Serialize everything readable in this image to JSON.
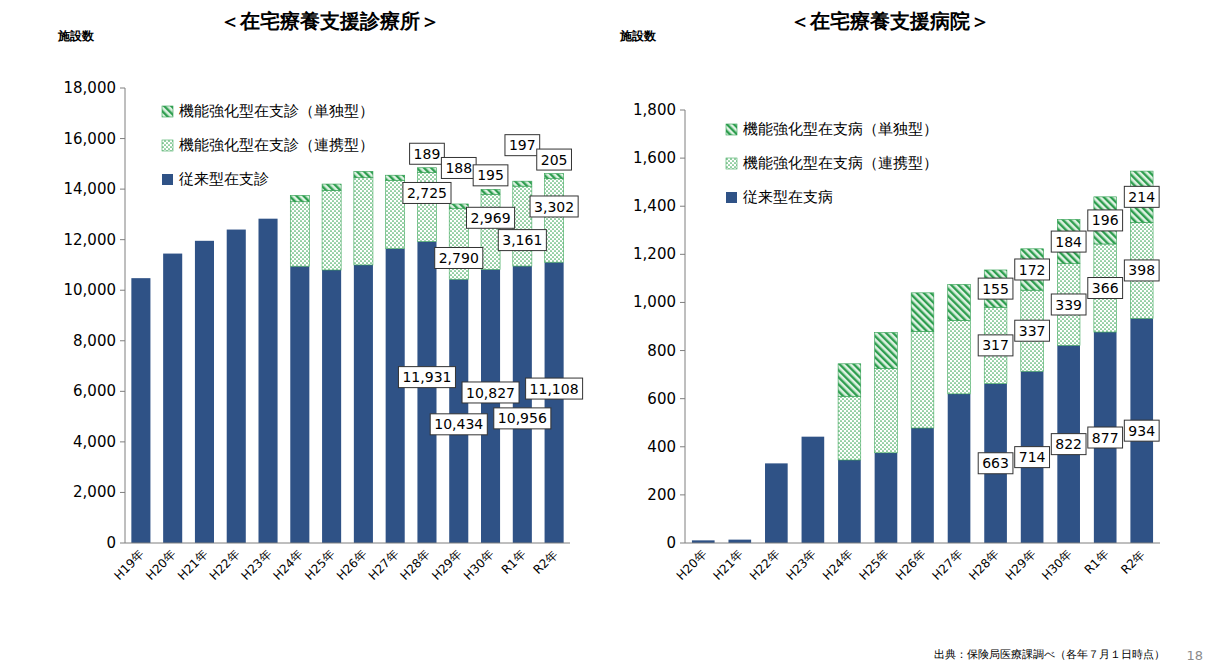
{
  "chart_data": [
    {
      "type": "bar",
      "stacked": true,
      "data_labels": true,
      "grid": false,
      "legend": "upper-left",
      "title": "＜在宅療養支援診療所＞",
      "ylabel": "施設数",
      "categories": [
        "H19年",
        "H20年",
        "H21年",
        "H22年",
        "H23年",
        "H24年",
        "H25年",
        "H26年",
        "H27年",
        "H28年",
        "H29年",
        "H30年",
        "R1年",
        "R2年"
      ],
      "ylim": [
        0,
        18000
      ],
      "yticks": [
        0,
        {
          "value": 2000,
          "label": "2,000"
        },
        {
          "value": 4000,
          "label": "4,000"
        },
        {
          "value": 6000,
          "label": "6,000"
        },
        {
          "value": 8000,
          "label": "8,000"
        },
        {
          "value": 10000,
          "label": "10,000"
        },
        {
          "value": 12000,
          "label": "12,000"
        },
        {
          "value": 14000,
          "label": "14,000"
        },
        {
          "value": 16000,
          "label": "16,000"
        },
        {
          "value": 18000,
          "label": "18,000"
        }
      ],
      "series": [
        {
          "name": "従来型在支診",
          "color": "#2f5286",
          "values": [
            10477,
            11450,
            11955,
            12400,
            12830,
            10950,
            10800,
            11000,
            11650,
            11931,
            10434,
            10827,
            10956,
            11108
          ],
          "value_labels": [
            null,
            null,
            null,
            null,
            null,
            null,
            null,
            null,
            null,
            "11,931",
            "10,434",
            "10,827",
            "10,956",
            "11,108"
          ]
        },
        {
          "name": "機能強化型在支診（連携型）",
          "color": "#3da85a",
          "values": [
            null,
            null,
            null,
            null,
            null,
            2550,
            3150,
            3450,
            2700,
            2725,
            2790,
            2969,
            3161,
            3302
          ],
          "value_labels": [
            null,
            null,
            null,
            null,
            null,
            null,
            null,
            null,
            null,
            "2,725",
            "2,790",
            "2,969",
            "3,161",
            "3,302"
          ]
        },
        {
          "name": "機能強化型在支診（単独型）",
          "color": "#2e9e4f",
          "values": [
            null,
            null,
            null,
            null,
            null,
            250,
            250,
            250,
            200,
            189,
            188,
            195,
            197,
            205
          ],
          "value_labels": [
            null,
            null,
            null,
            null,
            null,
            null,
            null,
            null,
            null,
            "189",
            "188",
            "195",
            "197",
            "205"
          ]
        }
      ]
    },
    {
      "type": "bar",
      "stacked": true,
      "data_labels": true,
      "grid": false,
      "legend": "upper-left",
      "title": "＜在宅療養支援病院＞",
      "ylabel": "施設数",
      "categories": [
        "H20年",
        "H21年",
        "H22年",
        "H23年",
        "H24年",
        "H25年",
        "H26年",
        "H27年",
        "H28年",
        "H29年",
        "H30年",
        "R1年",
        "R2年"
      ],
      "ylim": [
        0,
        1800
      ],
      "yticks": [
        0,
        200,
        400,
        600,
        800,
        {
          "value": 1000,
          "label": "1,000"
        },
        {
          "value": 1200,
          "label": "1,200"
        },
        {
          "value": 1400,
          "label": "1,400"
        },
        {
          "value": 1600,
          "label": "1,600"
        },
        {
          "value": 1800,
          "label": "1,800"
        }
      ],
      "series": [
        {
          "name": "従来型在支病",
          "color": "#2f5286",
          "values": [
            11,
            14,
            331,
            442,
            345,
            375,
            478,
            620,
            663,
            714,
            822,
            877,
            934
          ],
          "value_labels": [
            null,
            null,
            null,
            null,
            null,
            null,
            null,
            null,
            "663",
            "714",
            "822",
            "877",
            "934"
          ]
        },
        {
          "name": "機能強化型在支病（連携型）",
          "color": "#3da85a",
          "values": [
            null,
            null,
            null,
            null,
            265,
            350,
            402,
            305,
            317,
            337,
            339,
            366,
            398
          ],
          "value_labels": [
            null,
            null,
            null,
            null,
            null,
            null,
            null,
            null,
            "317",
            "337",
            "339",
            "366",
            "398"
          ]
        },
        {
          "name": "機能強化型在支病（単独型）",
          "color": "#2e9e4f",
          "values": [
            null,
            null,
            null,
            null,
            135,
            150,
            160,
            150,
            155,
            172,
            184,
            196,
            214
          ],
          "value_labels": [
            null,
            null,
            null,
            null,
            null,
            null,
            null,
            null,
            "155",
            "172",
            "184",
            "196",
            "214"
          ]
        }
      ]
    }
  ],
  "footer": {
    "source": "出典：保険局医療課調べ（各年７月１日時点）",
    "page": "18"
  }
}
